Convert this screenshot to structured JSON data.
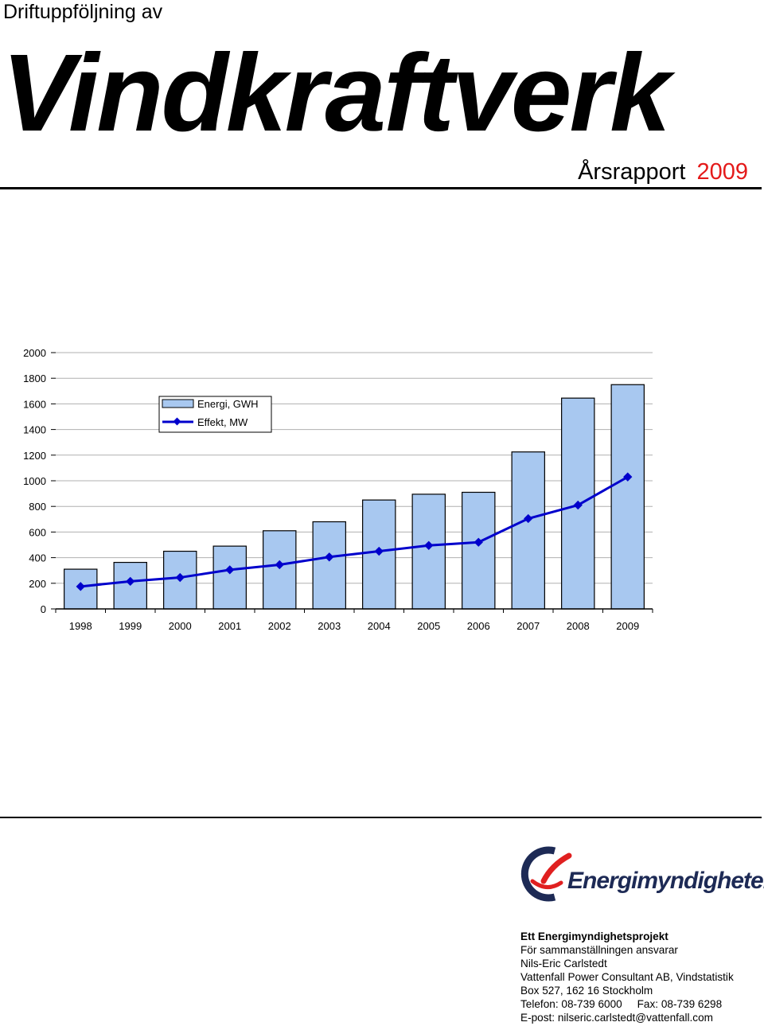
{
  "header": {
    "pretitle": "Driftuppföljning av",
    "title": "Vindkraftverk",
    "report_label": "Årsrapport",
    "report_year": "2009",
    "year_color": "#e41a1a"
  },
  "chart_data": {
    "type": "bar",
    "categories": [
      "1998",
      "1999",
      "2000",
      "2001",
      "2002",
      "2003",
      "2004",
      "2005",
      "2006",
      "2007",
      "2008",
      "2009"
    ],
    "series": [
      {
        "name": "Energi, GWH",
        "kind": "bar",
        "color": "#a8c8f0",
        "values": [
          310,
          363,
          450,
          490,
          610,
          680,
          850,
          895,
          910,
          1225,
          1645,
          1750
        ]
      },
      {
        "name": "Effekt, MW",
        "kind": "line",
        "color": "#0000cc",
        "values": [
          175,
          215,
          245,
          305,
          345,
          405,
          450,
          495,
          520,
          705,
          810,
          1030
        ]
      }
    ],
    "yticks": [
      "0",
      "200",
      "400",
      "600",
      "800",
      "1000",
      "1200",
      "1400",
      "1600",
      "1800",
      "2000"
    ],
    "ylim": [
      0,
      2000
    ],
    "grid": true,
    "legend_position": "top-left"
  },
  "logo": {
    "text": "Energimyndigheten",
    "mark_color_red": "#e02020",
    "mark_color_dark": "#1d2a55"
  },
  "contact": {
    "heading": "Ett Energimyndighetsprojekt",
    "lines": [
      "För sammanställningen ansvarar",
      "Nils-Eric Carlstedt",
      "Vattenfall Power Consultant AB, Vindstatistik",
      "Box 527, 162 16 Stockholm",
      "Telefon: 08-739 6000     Fax: 08-739 6298",
      "E-post: nilseric.carlstedt@vattenfall.com"
    ]
  }
}
